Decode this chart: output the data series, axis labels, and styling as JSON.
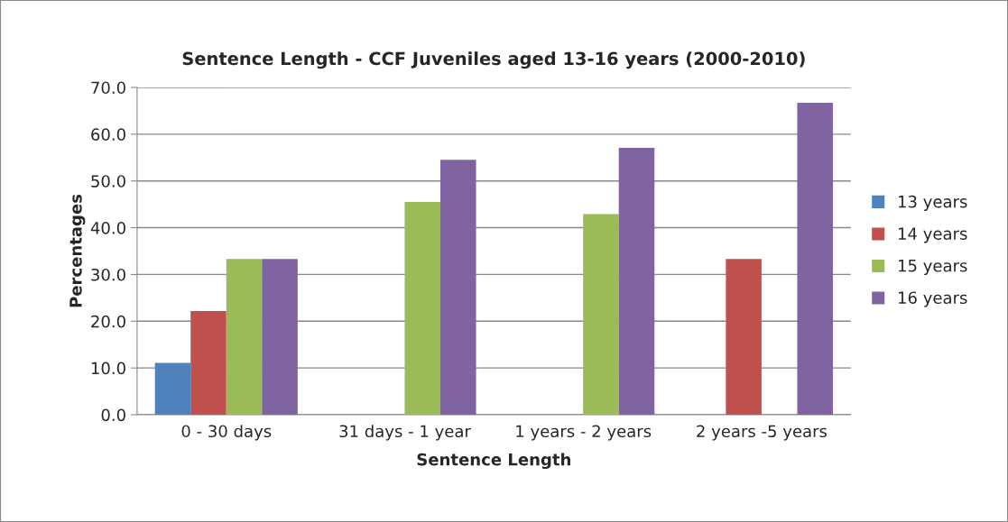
{
  "chart_data": {
    "type": "bar",
    "title": "Sentence Length - CCF Juveniles aged 13-16 years (2000-2010)",
    "xlabel": "Sentence Length",
    "ylabel": "Percentages",
    "categories": [
      "0 - 30 days",
      "31 days - 1 year",
      "1 years - 2 years",
      "2 years -5 years"
    ],
    "series": [
      {
        "name": "13 years",
        "color": "#4f81bd",
        "values": [
          11.1,
          null,
          null,
          null
        ]
      },
      {
        "name": "14 years",
        "color": "#c0504d",
        "values": [
          22.2,
          null,
          null,
          33.3
        ]
      },
      {
        "name": "15 years",
        "color": "#9bbb59",
        "values": [
          33.3,
          45.5,
          42.9,
          null
        ]
      },
      {
        "name": "16 years",
        "color": "#8064a2",
        "values": [
          33.3,
          54.5,
          57.1,
          66.7
        ]
      }
    ],
    "ylim": [
      0,
      70
    ],
    "yticks": [
      {
        "value": 0,
        "label": "0.0"
      },
      {
        "value": 10,
        "label": "10.0"
      },
      {
        "value": 20,
        "label": "20.0"
      },
      {
        "value": 30,
        "label": "30.0"
      },
      {
        "value": 40,
        "label": "40.0"
      },
      {
        "value": 50,
        "label": "50.0"
      },
      {
        "value": 60,
        "label": "60.0"
      },
      {
        "value": 70,
        "label": "70.0"
      }
    ],
    "grid": "y",
    "legend": "right"
  }
}
